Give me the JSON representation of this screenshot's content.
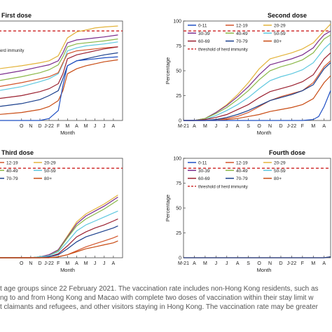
{
  "caption_lines": [
    "t age groups since 22 February 2021. The vaccination rate includes non-Hong Kong residents, such as",
    "ng to and from Hong Kong and Macao with complete two doses of vaccination within their stay limit w",
    "t claimants and refugees, and other visitors staying in Hong Kong. The vaccination rate may be greater"
  ],
  "colors": {
    "0-11": "#1f4fc4",
    "12-19": "#d2542a",
    "20-29": "#e3b33a",
    "30-39": "#7a2c8c",
    "40-49": "#8ab848",
    "50-59": "#5ec8df",
    "60-69": "#9a1f2e",
    "70-79": "#1a3f8c",
    "80+": "#c84a12",
    "threshold": "#cc2222"
  },
  "chart_data": [
    {
      "type": "line",
      "title": "First dose",
      "xlabel": "Month",
      "ylabel": "",
      "x_ticks": [
        "O",
        "N",
        "D",
        "J-22",
        "F",
        "M",
        "A",
        "M",
        "J",
        "J",
        "A"
      ],
      "x_tick_positions": [
        7,
        8,
        9,
        10,
        11,
        12,
        13,
        14,
        15,
        16,
        17
      ],
      "x_range": [
        4.5,
        18
      ],
      "y_range": [
        0,
        100
      ],
      "y_ticks": [],
      "grid": false,
      "legend_entries": [],
      "threshold_label": "erd immunity",
      "threshold": 90,
      "series": [
        {
          "key": "20-29",
          "x": [
            4.5,
            7,
            9,
            10,
            11,
            11.5,
            12,
            13,
            14,
            15,
            16,
            17.5
          ],
          "y": [
            52,
            55,
            58,
            60,
            65,
            74,
            83,
            89,
            91,
            93,
            94,
            95
          ]
        },
        {
          "key": "30-39",
          "x": [
            4.5,
            7,
            9,
            10,
            11,
            11.5,
            12,
            13,
            14,
            15,
            16,
            17.5
          ],
          "y": [
            46,
            50,
            54,
            56,
            60,
            68,
            78,
            81,
            82,
            83,
            84,
            86
          ]
        },
        {
          "key": "40-49",
          "x": [
            4.5,
            7,
            9,
            10,
            11,
            11.5,
            12,
            13,
            14,
            15,
            16,
            17.5
          ],
          "y": [
            40,
            44,
            48,
            51,
            56,
            64,
            74,
            77,
            78,
            79,
            80,
            82
          ]
        },
        {
          "key": "50-59",
          "x": [
            4.5,
            7,
            9,
            10,
            11,
            11.5,
            12,
            13,
            14,
            15,
            16,
            17.5
          ],
          "y": [
            30,
            34,
            39,
            42,
            47,
            57,
            70,
            73,
            75,
            76,
            77,
            79
          ]
        },
        {
          "key": "12-19",
          "x": [
            4.5,
            7,
            9,
            10,
            11,
            11.5,
            12,
            13,
            14,
            15,
            16,
            17.5
          ],
          "y": [
            34,
            38,
            42,
            44,
            48,
            58,
            67,
            70,
            71,
            72,
            73,
            74
          ]
        },
        {
          "key": "60-69",
          "x": [
            4.5,
            7,
            9,
            10,
            11,
            11.5,
            12,
            13,
            14,
            15,
            16,
            17.5
          ],
          "y": [
            22,
            25,
            29,
            32,
            37,
            47,
            62,
            66,
            68,
            70,
            72,
            74
          ]
        },
        {
          "key": "70-79",
          "x": [
            4.5,
            7,
            9,
            10,
            11,
            11.5,
            12,
            13,
            14,
            15,
            16,
            17.5
          ],
          "y": [
            14,
            17,
            21,
            25,
            30,
            42,
            55,
            60,
            62,
            64,
            66,
            68
          ]
        },
        {
          "key": "80+",
          "x": [
            4.5,
            7,
            9,
            10,
            11,
            11.5,
            12,
            13,
            14,
            15,
            16,
            17.5
          ],
          "y": [
            6,
            8,
            11,
            14,
            20,
            30,
            47,
            52,
            55,
            57,
            59,
            61
          ]
        },
        {
          "key": "0-11",
          "x": [
            4.5,
            7,
            9,
            10,
            11,
            11.5,
            12,
            13,
            14,
            15,
            16,
            17.5
          ],
          "y": [
            0,
            0,
            0,
            2,
            10,
            35,
            55,
            60,
            61,
            62,
            63,
            64
          ]
        }
      ]
    },
    {
      "type": "line",
      "title": "Second dose",
      "xlabel": "Month",
      "ylabel": "Percentage",
      "x_ticks": [
        "M-21",
        "A",
        "M",
        "J",
        "J",
        "A",
        "S",
        "O",
        "N",
        "D",
        "J-22",
        "F",
        "M",
        "A"
      ],
      "x_tick_positions": [
        0,
        1,
        2,
        3,
        4,
        5,
        6,
        7,
        8,
        9,
        10,
        11,
        12,
        13
      ],
      "x_range": [
        0,
        13.6
      ],
      "y_range": [
        0,
        100
      ],
      "y_ticks": [
        0,
        25,
        50,
        75,
        100
      ],
      "grid": false,
      "legend_entries": [
        "0-11",
        "12-19",
        "20-29",
        "30-39",
        "40-49",
        "50-59",
        "60-69",
        "70-79",
        "80+"
      ],
      "threshold_label": "threshold of herd immunity",
      "threshold": 90,
      "series": [
        {
          "key": "20-29",
          "x": [
            0,
            1,
            2,
            3,
            4,
            5,
            6,
            7,
            8,
            9,
            10,
            11,
            12,
            12.5,
            13,
            13.6
          ],
          "y": [
            0,
            0,
            2,
            8,
            16,
            26,
            38,
            52,
            62,
            65,
            68,
            72,
            78,
            84,
            90,
            97
          ]
        },
        {
          "key": "30-39",
          "x": [
            0,
            1,
            2,
            3,
            4,
            5,
            6,
            7,
            8,
            9,
            10,
            11,
            12,
            12.5,
            13,
            13.6
          ],
          "y": [
            0,
            0,
            2,
            8,
            15,
            24,
            34,
            46,
            56,
            59,
            62,
            66,
            73,
            80,
            86,
            90
          ]
        },
        {
          "key": "40-49",
          "x": [
            0,
            1,
            2,
            3,
            4,
            5,
            6,
            7,
            8,
            9,
            10,
            11,
            12,
            12.5,
            13,
            13.6
          ],
          "y": [
            0,
            0,
            2,
            7,
            13,
            21,
            30,
            41,
            50,
            54,
            57,
            61,
            68,
            75,
            82,
            86
          ]
        },
        {
          "key": "50-59",
          "x": [
            0,
            1,
            2,
            3,
            4,
            5,
            6,
            7,
            8,
            9,
            10,
            11,
            12,
            12.5,
            13,
            13.6
          ],
          "y": [
            0,
            0,
            1,
            5,
            10,
            16,
            23,
            32,
            40,
            44,
            47,
            51,
            58,
            65,
            72,
            78
          ]
        },
        {
          "key": "12-19",
          "x": [
            0,
            1,
            2,
            3,
            4,
            5,
            6,
            7,
            8,
            9,
            10,
            11,
            12,
            12.5,
            13,
            13.6
          ],
          "y": [
            0,
            0,
            0,
            1,
            2,
            4,
            8,
            14,
            20,
            24,
            27,
            30,
            38,
            46,
            54,
            60
          ]
        },
        {
          "key": "60-69",
          "x": [
            0,
            1,
            2,
            3,
            4,
            5,
            6,
            7,
            8,
            9,
            10,
            11,
            12,
            12.5,
            13,
            13.6
          ],
          "y": [
            0,
            0,
            1,
            3,
            6,
            11,
            16,
            23,
            29,
            32,
            35,
            39,
            46,
            54,
            62,
            68
          ]
        },
        {
          "key": "70-79",
          "x": [
            0,
            1,
            2,
            3,
            4,
            5,
            6,
            7,
            8,
            9,
            10,
            11,
            12,
            12.5,
            13,
            13.6
          ],
          "y": [
            0,
            0,
            0,
            1,
            3,
            6,
            10,
            15,
            20,
            23,
            26,
            30,
            36,
            44,
            52,
            58
          ]
        },
        {
          "key": "80+",
          "x": [
            0,
            1,
            2,
            3,
            4,
            5,
            6,
            7,
            8,
            9,
            10,
            11,
            12,
            12.5,
            13,
            13.6
          ],
          "y": [
            0,
            0,
            0,
            0,
            1,
            2,
            4,
            6,
            9,
            11,
            13,
            16,
            22,
            30,
            38,
            45
          ]
        },
        {
          "key": "0-11",
          "x": [
            0,
            1,
            2,
            3,
            4,
            5,
            6,
            7,
            8,
            9,
            10,
            11,
            12,
            12.5,
            13,
            13.6
          ],
          "y": [
            0,
            0,
            0,
            0,
            0,
            0,
            0,
            0,
            0,
            0,
            0,
            0,
            1,
            4,
            14,
            30
          ]
        }
      ]
    },
    {
      "type": "line",
      "title": "Third dose",
      "xlabel": "Month",
      "ylabel": "",
      "x_ticks": [
        "O",
        "N",
        "D",
        "J-22",
        "F",
        "M",
        "A",
        "M",
        "J",
        "J",
        "A"
      ],
      "x_tick_positions": [
        7,
        8,
        9,
        10,
        11,
        12,
        13,
        14,
        15,
        16,
        17
      ],
      "x_range": [
        4.5,
        18
      ],
      "y_range": [
        0,
        100
      ],
      "y_ticks": [],
      "grid": false,
      "legend_entries": [
        "12-19",
        "20-29",
        "40-49",
        "50-59",
        "70-79",
        "80+"
      ],
      "threshold_label": "",
      "threshold": 90,
      "series": [
        {
          "key": "20-29",
          "x": [
            4.5,
            8,
            9,
            10,
            11,
            12,
            13,
            14,
            15,
            16,
            17,
            17.5
          ],
          "y": [
            0,
            0,
            1,
            3,
            8,
            22,
            36,
            44,
            49,
            54,
            60,
            63
          ]
        },
        {
          "key": "30-39",
          "x": [
            4.5,
            8,
            9,
            10,
            11,
            12,
            13,
            14,
            15,
            16,
            17,
            17.5
          ],
          "y": [
            0,
            0,
            1,
            3,
            8,
            21,
            34,
            42,
            47,
            52,
            58,
            61
          ]
        },
        {
          "key": "40-49",
          "x": [
            4.5,
            8,
            9,
            10,
            11,
            12,
            13,
            14,
            15,
            16,
            17,
            17.5
          ],
          "y": [
            0,
            0,
            1,
            2,
            7,
            20,
            32,
            39,
            44,
            49,
            55,
            58
          ]
        },
        {
          "key": "50-59",
          "x": [
            4.5,
            8,
            9,
            10,
            11,
            12,
            13,
            14,
            15,
            16,
            17,
            17.5
          ],
          "y": [
            0,
            0,
            1,
            2,
            6,
            16,
            27,
            33,
            37,
            41,
            45,
            47
          ]
        },
        {
          "key": "60-69",
          "x": [
            4.5,
            8,
            9,
            10,
            11,
            12,
            13,
            14,
            15,
            16,
            17,
            17.5
          ],
          "y": [
            0,
            0,
            0,
            1,
            4,
            12,
            21,
            26,
            30,
            33,
            37,
            39
          ]
        },
        {
          "key": "70-79",
          "x": [
            4.5,
            8,
            9,
            10,
            11,
            12,
            13,
            14,
            15,
            16,
            17,
            17.5
          ],
          "y": [
            0,
            0,
            0,
            1,
            3,
            9,
            16,
            21,
            24,
            27,
            30,
            32
          ]
        },
        {
          "key": "12-19",
          "x": [
            4.5,
            8,
            9,
            10,
            11,
            12,
            13,
            14,
            15,
            16,
            17,
            17.5
          ],
          "y": [
            0,
            0,
            0,
            0,
            1,
            3,
            7,
            11,
            14,
            17,
            20,
            22
          ]
        },
        {
          "key": "80+",
          "x": [
            4.5,
            8,
            9,
            10,
            11,
            12,
            13,
            14,
            15,
            16,
            17,
            17.5
          ],
          "y": [
            0,
            0,
            0,
            0,
            1,
            3,
            6,
            9,
            11,
            13,
            15,
            17
          ]
        }
      ]
    },
    {
      "type": "line",
      "title": "Fourth dose",
      "xlabel": "Month",
      "ylabel": "Percentage",
      "x_ticks": [
        "M-21",
        "A",
        "M",
        "J",
        "J",
        "A",
        "S",
        "O",
        "N",
        "D",
        "J-22",
        "F",
        "M",
        "A"
      ],
      "x_tick_positions": [
        0,
        1,
        2,
        3,
        4,
        5,
        6,
        7,
        8,
        9,
        10,
        11,
        12,
        13
      ],
      "x_range": [
        0,
        13.6
      ],
      "y_range": [
        0,
        100
      ],
      "y_ticks": [
        0,
        25,
        50,
        75,
        100
      ],
      "grid": false,
      "legend_entries": [
        "0-11",
        "12-19",
        "20-29",
        "30-39",
        "40-49",
        "50-59",
        "60-69",
        "70-79",
        "80+"
      ],
      "threshold_label": "threshold of herd immunity",
      "threshold": 90,
      "series": [
        {
          "key": "80+",
          "x": [
            0,
            13,
            13.6
          ],
          "y": [
            0,
            0,
            1
          ]
        },
        {
          "key": "70-79",
          "x": [
            0,
            13,
            13.6
          ],
          "y": [
            0,
            0,
            1
          ]
        }
      ]
    }
  ]
}
